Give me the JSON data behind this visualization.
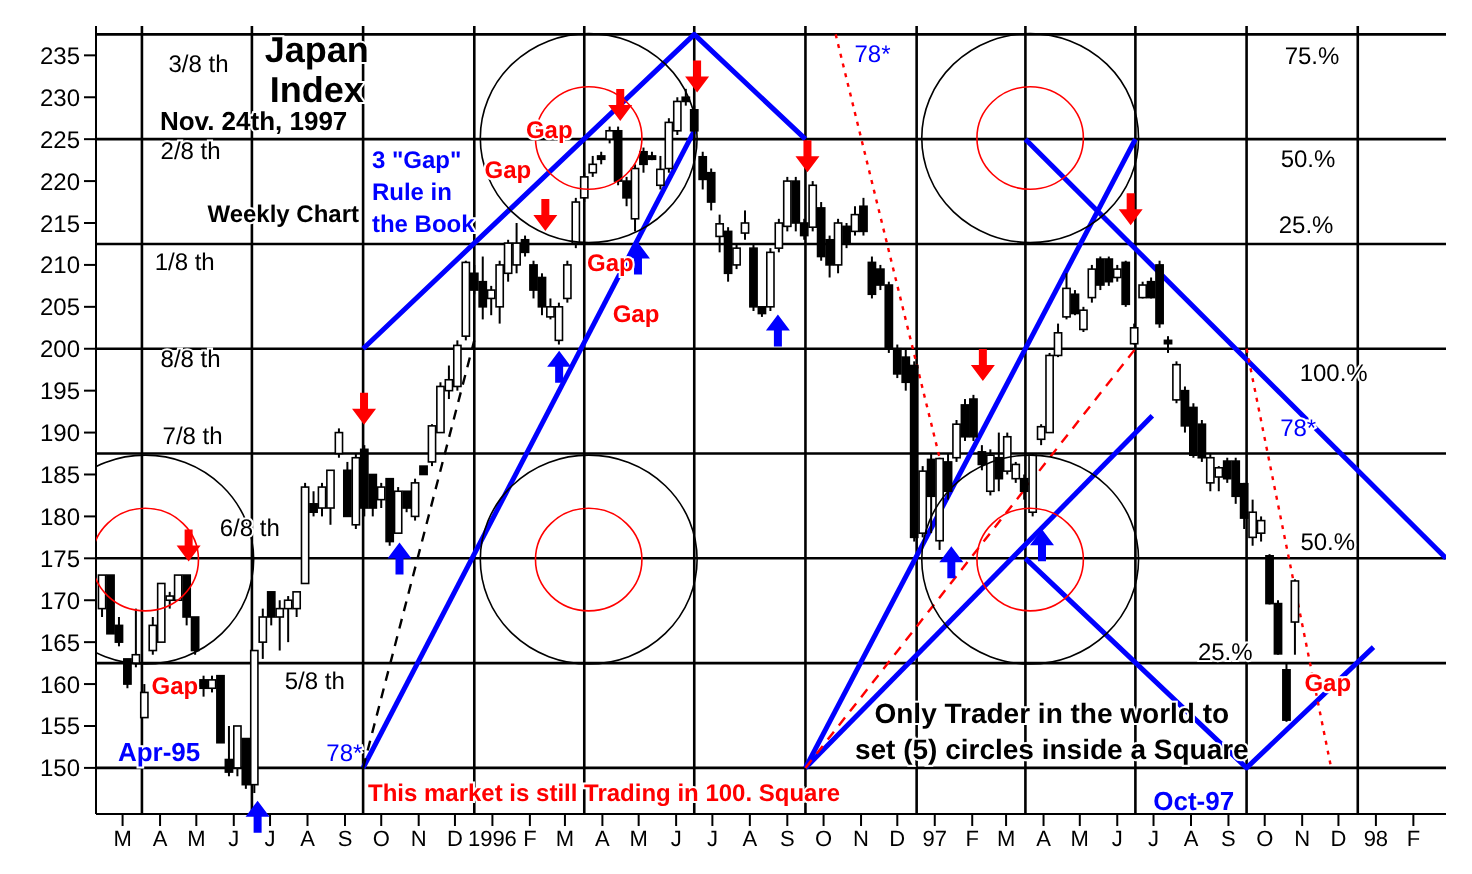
{
  "chart_data": {
    "type": "candlestick",
    "title": "Japan Index",
    "subtitle": "Nov. 24th, 1997",
    "color": "#000000",
    "x": [
      "1995-02-27",
      "1995-03-06",
      "1995-03-13",
      "1995-03-20",
      "1995-03-27",
      "1995-04-03",
      "1995-04-10",
      "1995-04-17",
      "1995-04-24",
      "1995-05-01",
      "1995-05-08",
      "1995-05-15",
      "1995-05-22",
      "1995-05-29",
      "1995-06-05",
      "1995-06-12",
      "1995-06-19",
      "1995-06-26",
      "1995-07-03",
      "1995-07-10",
      "1995-07-17",
      "1995-07-24",
      "1995-07-31",
      "1995-08-07",
      "1995-08-14",
      "1995-08-21",
      "1995-08-28",
      "1995-09-04",
      "1995-09-11",
      "1995-09-18",
      "1995-09-25",
      "1995-10-02",
      "1995-10-09",
      "1995-10-16",
      "1995-10-23",
      "1995-10-30",
      "1995-11-06",
      "1995-11-13",
      "1995-11-20",
      "1995-11-27",
      "1995-12-04",
      "1995-12-11",
      "1995-12-18",
      "1995-12-25",
      "1996-01-01",
      "1996-01-08",
      "1996-01-15",
      "1996-01-22",
      "1996-01-29",
      "1996-02-05",
      "1996-02-12",
      "1996-02-19",
      "1996-02-26",
      "1996-03-04",
      "1996-03-11",
      "1996-03-18",
      "1996-03-25",
      "1996-04-01",
      "1996-04-08",
      "1996-04-15",
      "1996-04-22",
      "1996-04-29",
      "1996-05-06",
      "1996-05-13",
      "1996-05-20",
      "1996-05-27",
      "1996-06-03",
      "1996-06-10",
      "1996-06-17",
      "1996-06-24",
      "1996-07-01",
      "1996-07-08",
      "1996-07-15",
      "1996-07-22",
      "1996-07-29",
      "1996-08-05",
      "1996-08-12",
      "1996-08-19",
      "1996-08-26",
      "1996-09-02",
      "1996-09-09",
      "1996-09-16",
      "1996-09-23",
      "1996-09-30",
      "1996-10-07",
      "1996-10-14",
      "1996-10-21",
      "1996-10-28",
      "1996-11-04",
      "1996-11-11",
      "1996-11-18",
      "1996-11-25",
      "1996-12-02",
      "1996-12-09",
      "1996-12-16",
      "1996-12-23",
      "1996-12-30",
      "1997-01-06",
      "1997-01-13",
      "1997-01-20",
      "1997-01-27",
      "1997-02-03",
      "1997-02-10",
      "1997-02-17",
      "1997-02-24",
      "1997-03-03",
      "1997-03-10",
      "1997-03-17",
      "1997-03-24",
      "1997-03-31",
      "1997-04-07",
      "1997-04-14",
      "1997-04-21",
      "1997-04-28",
      "1997-05-05",
      "1997-05-12",
      "1997-05-19",
      "1997-05-26",
      "1997-06-02",
      "1997-06-09",
      "1997-06-16",
      "1997-06-23",
      "1997-06-30",
      "1997-07-07",
      "1997-07-14",
      "1997-07-21",
      "1997-07-28",
      "1997-08-04",
      "1997-08-11",
      "1997-08-18",
      "1997-08-25",
      "1997-09-01",
      "1997-09-08",
      "1997-09-15",
      "1997-09-22",
      "1997-09-29",
      "1997-10-06",
      "1997-10-13",
      "1997-10-20",
      "1997-10-27",
      "1997-11-03",
      "1997-11-10"
    ],
    "ohlc": [
      [
        169,
        173,
        168,
        173
      ],
      [
        173,
        173,
        166,
        166
      ],
      [
        167,
        168,
        164.5,
        165
      ],
      [
        163,
        163,
        159.5,
        160
      ],
      [
        162.5,
        169,
        162,
        163.5
      ],
      [
        156,
        160,
        156,
        159
      ],
      [
        164,
        168,
        163.5,
        167
      ],
      [
        165,
        172,
        165,
        172
      ],
      [
        170,
        171,
        169,
        170.5
      ],
      [
        170,
        173,
        170,
        173
      ],
      [
        173,
        173,
        167,
        168
      ],
      [
        168,
        168,
        163.5,
        164
      ],
      [
        160.5,
        161,
        158.5,
        159.5
      ],
      [
        159.5,
        161,
        159,
        160.5
      ],
      [
        161,
        161,
        153,
        153
      ],
      [
        151,
        155,
        149,
        149.5
      ],
      [
        150,
        155,
        149,
        155
      ],
      [
        153.5,
        153.5,
        147.5,
        148
      ],
      [
        148,
        164,
        147,
        164
      ],
      [
        165,
        169,
        163,
        168
      ],
      [
        171,
        171,
        167,
        168
      ],
      [
        168,
        170,
        164,
        169
      ],
      [
        169,
        170.5,
        165,
        170
      ],
      [
        169,
        171,
        168,
        171
      ],
      [
        172,
        184,
        172,
        183.5
      ],
      [
        181.5,
        183,
        180,
        180.5
      ],
      [
        181,
        184,
        180,
        183.5
      ],
      [
        181,
        185.5,
        179,
        185.5
      ],
      [
        187.5,
        190.5,
        187,
        190
      ],
      [
        185.5,
        186.5,
        180,
        180
      ],
      [
        179,
        187.5,
        178.5,
        187
      ],
      [
        188,
        188.5,
        180,
        181
      ],
      [
        185,
        185,
        180,
        181
      ],
      [
        182,
        184,
        181,
        183.5
      ],
      [
        184.5,
        184.5,
        176.5,
        177
      ],
      [
        178,
        183.5,
        178,
        183
      ],
      [
        183,
        183,
        180.5,
        181
      ],
      [
        180,
        184.5,
        179.5,
        184
      ],
      [
        186,
        186,
        185,
        185
      ],
      [
        186.5,
        191,
        186,
        190.8
      ],
      [
        190,
        196,
        190,
        195.5
      ],
      [
        195,
        198,
        194,
        196.3
      ],
      [
        195.5,
        201,
        195,
        200.4
      ],
      [
        201.5,
        210.5,
        201,
        210.3
      ],
      [
        209,
        210,
        206.5,
        207
      ],
      [
        208,
        211,
        203.5,
        205
      ],
      [
        206,
        207.5,
        204,
        207
      ],
      [
        205,
        210.5,
        203,
        210
      ],
      [
        209,
        213,
        208,
        212.6
      ],
      [
        210,
        215,
        209,
        212.6
      ],
      [
        213,
        213.5,
        211,
        211.5
      ],
      [
        210,
        210.5,
        206,
        207
      ],
      [
        208.5,
        209,
        204,
        205
      ],
      [
        203.8,
        206,
        203.5,
        205
      ],
      [
        201,
        205.5,
        200.5,
        205
      ],
      [
        206,
        210.5,
        205.5,
        210
      ],
      [
        212.6,
        218,
        212,
        217.5
      ],
      [
        218,
        221,
        217.5,
        220.5
      ],
      [
        221,
        223,
        220.5,
        222
      ],
      [
        223,
        223.5,
        222,
        222.6
      ],
      [
        225,
        226.5,
        224.5,
        226
      ],
      [
        226,
        226.5,
        219.5,
        220
      ],
      [
        220,
        220.5,
        217,
        218
      ],
      [
        215.5,
        222,
        214,
        221.5
      ],
      [
        223.5,
        224,
        221,
        222
      ],
      [
        223,
        223.5,
        222.5,
        222.6
      ],
      [
        219.5,
        223,
        219,
        221.4
      ],
      [
        221.5,
        227.5,
        221,
        227
      ],
      [
        226,
        230,
        225.5,
        229.5
      ],
      [
        230,
        231,
        229,
        229.5
      ],
      [
        228.5,
        229,
        224,
        226
      ],
      [
        222.9,
        223.5,
        219,
        220.2
      ],
      [
        221,
        221.5,
        216.5,
        217.5
      ],
      [
        213.4,
        216,
        211.5,
        214.9
      ],
      [
        214,
        214.5,
        208,
        209
      ],
      [
        210,
        212.5,
        209.5,
        212
      ],
      [
        213.8,
        216.5,
        213,
        215
      ],
      [
        212,
        212.5,
        204.5,
        205
      ],
      [
        205,
        205,
        203.8,
        204.2
      ],
      [
        205,
        212,
        204.5,
        211.5
      ],
      [
        212,
        215.5,
        211.5,
        215
      ],
      [
        214.6,
        220.5,
        214,
        220
      ],
      [
        220,
        220.5,
        214,
        215
      ],
      [
        215,
        215.5,
        213,
        213.5
      ],
      [
        214.5,
        220,
        214,
        219.5
      ],
      [
        216.8,
        217.5,
        210.5,
        211
      ],
      [
        213,
        213.5,
        208.5,
        210
      ],
      [
        210,
        215.5,
        209,
        215
      ],
      [
        214.6,
        215,
        212,
        212.6
      ],
      [
        214,
        217,
        213.5,
        216
      ],
      [
        217,
        218,
        213.5,
        214
      ],
      [
        210.3,
        211,
        206,
        206.5
      ],
      [
        209.5,
        210,
        207,
        207.6
      ],
      [
        207.6,
        208,
        199.5,
        200
      ],
      [
        200,
        200.5,
        196.5,
        197
      ],
      [
        199,
        200,
        195,
        196
      ],
      [
        198,
        198.5,
        177,
        177.5
      ],
      [
        178,
        186,
        177.5,
        185.4
      ],
      [
        186.8,
        187.5,
        178,
        182.4
      ],
      [
        177.1,
        187,
        176,
        186.9
      ],
      [
        186.5,
        187.5,
        182,
        183
      ],
      [
        187,
        191.5,
        186.5,
        191
      ],
      [
        193.3,
        194,
        189,
        189.5
      ],
      [
        194,
        194.5,
        189,
        189.5
      ],
      [
        187.7,
        188.5,
        185.5,
        186.2
      ],
      [
        183,
        188,
        182.5,
        187.3
      ],
      [
        187,
        190,
        183,
        184.5
      ],
      [
        185.4,
        190,
        185,
        189.5
      ],
      [
        184.5,
        186.5,
        184,
        186.2
      ],
      [
        184.5,
        185,
        182,
        183
      ],
      [
        180.5,
        187.5,
        180,
        187.3
      ],
      [
        189.2,
        191,
        188.5,
        190.7
      ],
      [
        190,
        199.5,
        190,
        199.2
      ],
      [
        199.2,
        203,
        199,
        201.9
      ],
      [
        203.8,
        209,
        203.5,
        207.2
      ],
      [
        206.5,
        207,
        204,
        204.2
      ],
      [
        202.3,
        205,
        202,
        204.6
      ],
      [
        206.1,
        210,
        205.5,
        209.5
      ],
      [
        210.7,
        211,
        207,
        207.6
      ],
      [
        210.7,
        211,
        207.5,
        208
      ],
      [
        208.5,
        210,
        208,
        209.5
      ],
      [
        210.3,
        210.5,
        205,
        205.3
      ],
      [
        200.6,
        203,
        200.5,
        202.5
      ],
      [
        206.1,
        208,
        206,
        207.6
      ],
      [
        208,
        208.5,
        206,
        206.1
      ],
      [
        210,
        210.5,
        202.5,
        203
      ],
      [
        201,
        201.5,
        199.5,
        200.6
      ],
      [
        193.9,
        198.5,
        193.5,
        198.1
      ],
      [
        195,
        195.5,
        190,
        190.8
      ],
      [
        193,
        193.5,
        187,
        187.3
      ],
      [
        191,
        191.5,
        186.5,
        187
      ],
      [
        184,
        187.5,
        183,
        187
      ],
      [
        184.7,
        186,
        183,
        185.8
      ],
      [
        186.6,
        187,
        184,
        184.5
      ],
      [
        186.6,
        187,
        181.5,
        182.4
      ],
      [
        183.9,
        184,
        178.5,
        179.8
      ],
      [
        177.5,
        182,
        176.5,
        180.5
      ],
      [
        178,
        180,
        177,
        179.5
      ],
      [
        175.3,
        175.5,
        169.5,
        169.6
      ],
      [
        169.6,
        170,
        163.5,
        163.6
      ],
      [
        161.7,
        162.5,
        155.5,
        155.7
      ],
      [
        167.4,
        172.5,
        163.5,
        172.3
      ]
    ],
    "series": [
      {
        "type": "line",
        "color": "#0000ff",
        "line_style": "solid",
        "x": [
          "1995-10-01",
          "1996-07-01",
          "1996-10-01"
        ],
        "values": [
          200,
          237.5,
          225
        ]
      },
      {
        "type": "line",
        "color": "#0000ff",
        "line_style": "solid",
        "x": [
          "1995-10-01",
          "1996-07-01"
        ],
        "values": [
          150,
          226
        ]
      },
      {
        "type": "line",
        "color": "#0000ff",
        "line_style": "solid",
        "x": [
          "1996-10-01",
          "1997-07-01"
        ],
        "values": [
          150,
          225
        ]
      },
      {
        "type": "line",
        "color": "#0000ff",
        "line_style": "solid",
        "x": [
          "1997-04-01",
          "1998-03-15"
        ],
        "values": [
          225,
          175
        ]
      },
      {
        "type": "line",
        "color": "#0000ff",
        "line_style": "solid",
        "x": [
          "1996-10-01",
          "1997-07-15"
        ],
        "values": [
          150,
          192
        ]
      },
      {
        "type": "line",
        "color": "#0000ff",
        "line_style": "solid",
        "x": [
          "1997-04-01",
          "1997-10-01",
          "1998-01-14"
        ],
        "values": [
          175,
          150,
          164.4
        ]
      },
      {
        "type": "line",
        "color": "#ff0000",
        "line_style": "dotted",
        "x": [
          "1996-10-26",
          "1997-01-20"
        ],
        "values": [
          237.5,
          187
        ]
      },
      {
        "type": "line",
        "color": "#ff0000",
        "line_style": "dotted",
        "x": [
          "1997-10-01",
          "1997-12-10"
        ],
        "values": [
          200,
          150
        ]
      },
      {
        "type": "line",
        "color": "#ff0000",
        "line_style": "dashed",
        "x": [
          "1996-10-01",
          "1997-07-01"
        ],
        "values": [
          150,
          200
        ]
      },
      {
        "type": "line",
        "color": "#000000",
        "line_style": "dashed",
        "x": [
          "1995-10-01",
          "1996-01-01"
        ],
        "values": [
          150,
          201
        ]
      }
    ],
    "xlim": [
      "1995-02-22",
      "1998-03-15"
    ],
    "xticks": [
      {
        "value": "1995-03-16",
        "label": "M"
      },
      {
        "value": "1995-04-16",
        "label": "A"
      },
      {
        "value": "1995-05-16",
        "label": "M"
      },
      {
        "value": "1995-06-16",
        "label": "J"
      },
      {
        "value": "1995-07-16",
        "label": "J"
      },
      {
        "value": "1995-08-16",
        "label": "A"
      },
      {
        "value": "1995-09-16",
        "label": "S"
      },
      {
        "value": "1995-10-16",
        "label": "O"
      },
      {
        "value": "1995-11-16",
        "label": "N"
      },
      {
        "value": "1995-12-16",
        "label": "D"
      },
      {
        "value": "1996-01-16",
        "label": "1996"
      },
      {
        "value": "1996-02-16",
        "label": "F"
      },
      {
        "value": "1996-03-16",
        "label": "M"
      },
      {
        "value": "1996-04-16",
        "label": "A"
      },
      {
        "value": "1996-05-16",
        "label": "M"
      },
      {
        "value": "1996-06-16",
        "label": "J"
      },
      {
        "value": "1996-07-16",
        "label": "J"
      },
      {
        "value": "1996-08-16",
        "label": "A"
      },
      {
        "value": "1996-09-16",
        "label": "S"
      },
      {
        "value": "1996-10-16",
        "label": "O"
      },
      {
        "value": "1996-11-16",
        "label": "N"
      },
      {
        "value": "1996-12-16",
        "label": "D"
      },
      {
        "value": "1997-01-16",
        "label": "97"
      },
      {
        "value": "1997-02-16",
        "label": "F"
      },
      {
        "value": "1997-03-16",
        "label": "M"
      },
      {
        "value": "1997-04-16",
        "label": "A"
      },
      {
        "value": "1997-05-16",
        "label": "M"
      },
      {
        "value": "1997-06-16",
        "label": "J"
      },
      {
        "value": "1997-07-16",
        "label": "J"
      },
      {
        "value": "1997-08-16",
        "label": "A"
      },
      {
        "value": "1997-09-16",
        "label": "S"
      },
      {
        "value": "1997-10-16",
        "label": "O"
      },
      {
        "value": "1997-11-16",
        "label": "N"
      },
      {
        "value": "1997-12-16",
        "label": "D"
      },
      {
        "value": "1998-01-16",
        "label": "98"
      },
      {
        "value": "1998-02-16",
        "label": "F"
      }
    ],
    "ylim": [
      144.5,
      238.5
    ],
    "yticks": [
      150,
      155,
      160,
      165,
      170,
      175,
      180,
      185,
      190,
      195,
      200,
      205,
      210,
      215,
      220,
      225,
      230,
      235
    ],
    "ref_lines": [
      {
        "axis": "y",
        "value": 150
      },
      {
        "axis": "y",
        "value": 162.5,
        "label": "5/8 th"
      },
      {
        "axis": "y",
        "value": 175,
        "label": "6/8 th"
      },
      {
        "axis": "y",
        "value": 187.5,
        "label": "7/8 th"
      },
      {
        "axis": "y",
        "value": 200,
        "label": "8/8 th"
      },
      {
        "axis": "y",
        "value": 212.5,
        "label": "1/8 th"
      },
      {
        "axis": "y",
        "value": 225,
        "label": "2/8 th"
      },
      {
        "axis": "y",
        "value": 237.5,
        "label": "3/8 th"
      },
      {
        "axis": "x",
        "value": "1995-04-01"
      },
      {
        "axis": "x",
        "value": "1995-07-01"
      },
      {
        "axis": "x",
        "value": "1995-10-01"
      },
      {
        "axis": "x",
        "value": "1996-01-01"
      },
      {
        "axis": "x",
        "value": "1996-04-01"
      },
      {
        "axis": "x",
        "value": "1996-07-01"
      },
      {
        "axis": "x",
        "value": "1996-10-01"
      },
      {
        "axis": "x",
        "value": "1997-01-01"
      },
      {
        "axis": "x",
        "value": "1997-04-01"
      },
      {
        "axis": "x",
        "value": "1997-07-01"
      },
      {
        "axis": "x",
        "value": "1997-10-01"
      },
      {
        "axis": "x",
        "value": "1998-01-01"
      }
    ],
    "annotations": [
      "Weekly Chart",
      "3 \"Gap\" Rule in the Book",
      "Only Trader in the world to set (5) circles inside a Square",
      "This market is still Trading in 100. Square",
      "Gap",
      "Gap",
      "Gap",
      "Gap",
      "Gap",
      "Gap",
      "78*",
      "78*",
      "78*",
      "Apr-95",
      "Oct-97",
      "75.%",
      "50.%",
      "25.%",
      "100.%",
      "50.%",
      "25.%"
    ]
  }
}
